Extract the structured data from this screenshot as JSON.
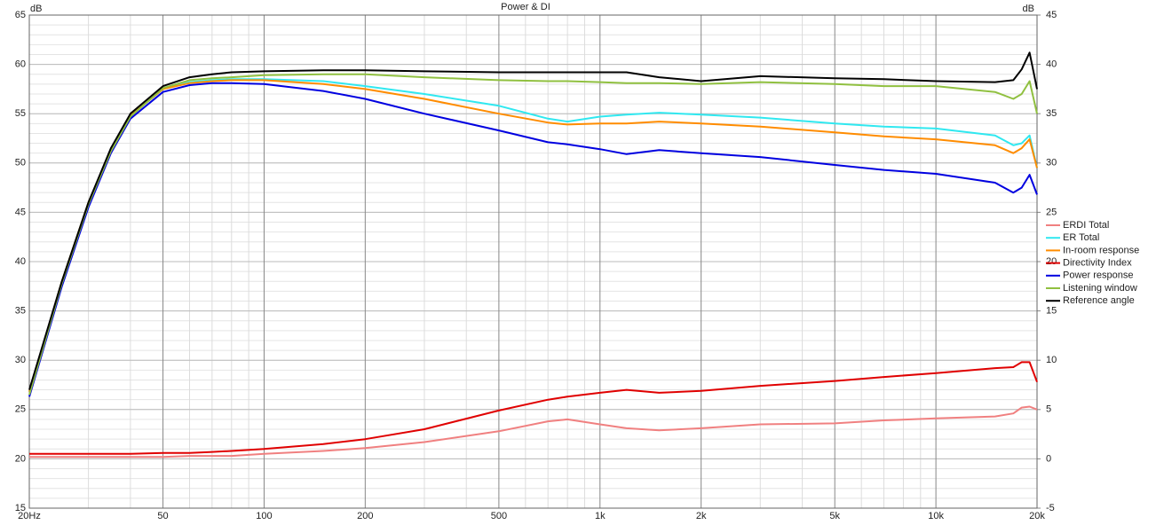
{
  "chart_data": {
    "type": "line",
    "title": "Power & DI",
    "ylabel": "dB",
    "y2label": "dB",
    "xscale": "log",
    "grid": true,
    "legend": "right",
    "xlim": [
      20,
      20000
    ],
    "xticks": [
      {
        "value": 20,
        "label": "20Hz"
      },
      50,
      100,
      200,
      500,
      {
        "value": 1000,
        "label": "1k"
      },
      {
        "value": 2000,
        "label": "2k"
      },
      {
        "value": 5000,
        "label": "5k"
      },
      {
        "value": 10000,
        "label": "10k"
      },
      {
        "value": 20000,
        "label": "20k"
      }
    ],
    "xminor": [
      30,
      40,
      60,
      70,
      80,
      90,
      300,
      400,
      600,
      700,
      800,
      900,
      3000,
      4000,
      6000,
      7000,
      8000,
      9000
    ],
    "ylim": [
      15,
      65
    ],
    "yticks": [
      15,
      20,
      25,
      30,
      35,
      40,
      45,
      50,
      55,
      60,
      65
    ],
    "yminor_step": 1,
    "y2lim": [
      -5,
      45
    ],
    "y2ticks": [
      -5,
      0,
      5,
      10,
      15,
      20,
      25,
      30,
      35,
      40,
      45
    ],
    "x": [
      20,
      25,
      30,
      35,
      40,
      50,
      60,
      70,
      80,
      100,
      150,
      200,
      300,
      500,
      700,
      800,
      1000,
      1200,
      1500,
      2000,
      3000,
      5000,
      7000,
      10000,
      15000,
      17000,
      18000,
      19000,
      20000
    ],
    "series": [
      {
        "name": "ERDI Total",
        "color": "#f08080",
        "axis": "y2",
        "values": [
          0.2,
          0.2,
          0.2,
          0.2,
          0.2,
          0.2,
          0.3,
          0.3,
          0.3,
          0.5,
          0.8,
          1.1,
          1.7,
          2.8,
          3.8,
          4.0,
          3.5,
          3.1,
          2.9,
          3.1,
          3.5,
          3.6,
          3.9,
          4.1,
          4.3,
          4.6,
          5.2,
          5.3,
          5.0
        ]
      },
      {
        "name": "ER Total",
        "color": "#30e8f0",
        "values": [
          26.8,
          38,
          46,
          51.3,
          54.8,
          57.5,
          58.2,
          58.4,
          58.5,
          58.5,
          58.3,
          57.8,
          57.0,
          55.8,
          54.5,
          54.2,
          54.7,
          54.9,
          55.1,
          54.9,
          54.6,
          54.0,
          53.7,
          53.5,
          52.8,
          51.8,
          52.0,
          52.8,
          49.5
        ]
      },
      {
        "name": "In-room response",
        "color": "#ff8c00",
        "values": [
          26.8,
          38,
          46,
          51.3,
          54.8,
          57.5,
          58.1,
          58.3,
          58.4,
          58.4,
          58.0,
          57.5,
          56.5,
          55.0,
          54.1,
          53.9,
          54.0,
          54.0,
          54.2,
          54.0,
          53.7,
          53.1,
          52.7,
          52.4,
          51.8,
          51.0,
          51.5,
          52.4,
          49.5
        ]
      },
      {
        "name": "Directivity Index",
        "color": "#e00000",
        "axis": "y2",
        "values": [
          0.5,
          0.5,
          0.5,
          0.5,
          0.5,
          0.6,
          0.6,
          0.7,
          0.8,
          1.0,
          1.5,
          2.0,
          3.0,
          4.9,
          6.0,
          6.3,
          6.7,
          7.0,
          6.7,
          6.9,
          7.4,
          7.9,
          8.3,
          8.7,
          9.2,
          9.3,
          9.8,
          9.8,
          7.8
        ]
      },
      {
        "name": "Power response",
        "color": "#0000e0",
        "values": [
          26.3,
          37.5,
          45.5,
          51,
          54.5,
          57.2,
          57.9,
          58.1,
          58.1,
          58.0,
          57.3,
          56.5,
          55,
          53.3,
          52.1,
          51.9,
          51.4,
          50.9,
          51.3,
          51.0,
          50.6,
          49.8,
          49.3,
          48.9,
          48.0,
          47.0,
          47.5,
          48.8,
          46.8
        ]
      },
      {
        "name": "Listening window",
        "color": "#90c040",
        "values": [
          26.5,
          37.8,
          45.8,
          51.2,
          54.7,
          57.6,
          58.4,
          58.6,
          58.7,
          58.9,
          59.0,
          59.0,
          58.7,
          58.4,
          58.3,
          58.3,
          58.2,
          58.1,
          58.1,
          58.0,
          58.2,
          58.0,
          57.8,
          57.8,
          57.2,
          56.5,
          57.0,
          58.3,
          55
        ]
      },
      {
        "name": "Reference angle",
        "color": "#000000",
        "values": [
          27,
          38,
          46,
          51.5,
          55,
          57.8,
          58.7,
          59.0,
          59.2,
          59.3,
          59.4,
          59.4,
          59.3,
          59.2,
          59.2,
          59.2,
          59.2,
          59.2,
          58.7,
          58.3,
          58.8,
          58.6,
          58.5,
          58.3,
          58.2,
          58.4,
          59.5,
          61.2,
          57.5
        ]
      }
    ]
  }
}
